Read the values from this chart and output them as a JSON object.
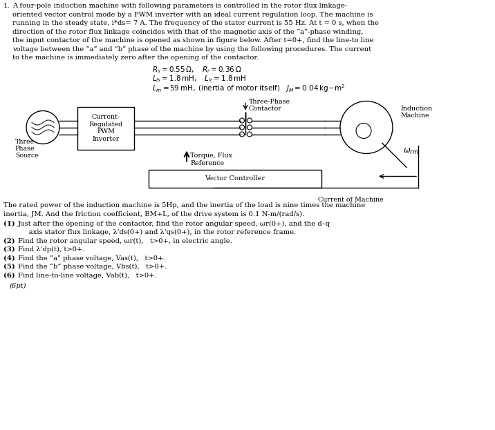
{
  "bg_color": "#ffffff",
  "para_lines": [
    "A four-pole induction machine with following parameters is controlled in the rotor flux linkage-",
    "oriented vector control mode by a PWM inverter with an ideal current regulation loop. The machine is",
    "running in the steady state, i*ds= 7 A. The frequency of the stator current is 55 Hz. At t = 0 s, when the",
    "direction of the rotor flux linkage coincides with that of the magnetic axis of the “a”-phase winding,",
    "the input contactor of the machine is opened as shown in figure below. After t=0+, find the line-to line",
    "voltage between the “a” and “b” phase of the machine by using the following procedures. The current",
    "to the machine is immediately zero after the opening of the contactor."
  ],
  "footer_lines": [
    "The rated power of the induction machine is 5Hp, and the inertia of the load is nine times the machine",
    "inertia, JM. And the friction coefficient, BM+L, of the drive system is 0.1 N-m/(rad/s)."
  ],
  "questions": [
    [
      "(1)",
      "Just after the opening of the contactor, find the rotor angular speed, ωr(0+), and the d–q"
    ],
    [
      "",
      "     axis stator flux linkage, λ'ds(0+) and λ'qs(0+), in the rotor reference frame."
    ],
    [
      "(2)",
      "Find the rotor angular speed, ωr(t),   t>0+, in electric angle."
    ],
    [
      "(3)",
      "Find λ'dp(t), t>0+."
    ],
    [
      "(4)",
      "Find the “a” phase voltage, Vas(t),   t>0+."
    ],
    [
      "(5)",
      "Find the “b” phase voltage, Vbs(t),   t>0+."
    ],
    [
      "(6)",
      "Find line-to-line voltage, Vab(t),   t>0+."
    ]
  ]
}
